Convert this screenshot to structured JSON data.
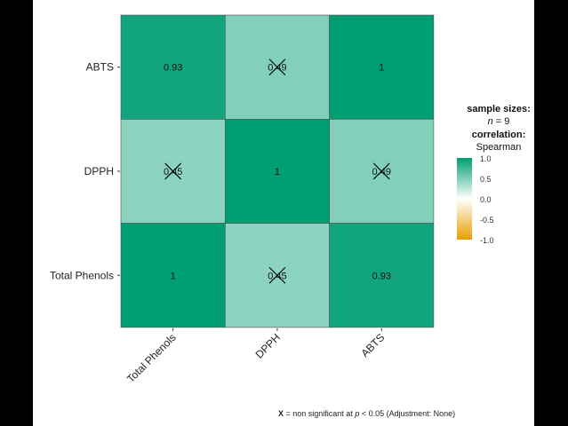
{
  "chart_data": {
    "type": "heatmap",
    "x_categories": [
      "Total Phenols",
      "DPPH",
      "ABTS"
    ],
    "y_categories": [
      "Total Phenols",
      "DPPH",
      "ABTS"
    ],
    "cells": [
      {
        "x": "Total Phenols",
        "y": "ABTS",
        "value": 0.93,
        "label": "0.93",
        "significant": true
      },
      {
        "x": "DPPH",
        "y": "ABTS",
        "value": 0.49,
        "label": "0.49",
        "significant": false
      },
      {
        "x": "ABTS",
        "y": "ABTS",
        "value": 1,
        "label": "1",
        "significant": true
      },
      {
        "x": "Total Phenols",
        "y": "DPPH",
        "value": 0.45,
        "label": "0.45",
        "significant": false
      },
      {
        "x": "DPPH",
        "y": "DPPH",
        "value": 1,
        "label": "1",
        "significant": true
      },
      {
        "x": "ABTS",
        "y": "DPPH",
        "value": 0.49,
        "label": "0.49",
        "significant": false
      },
      {
        "x": "Total Phenols",
        "y": "Total Phenols",
        "value": 1,
        "label": "1",
        "significant": true
      },
      {
        "x": "DPPH",
        "y": "Total Phenols",
        "value": 0.45,
        "label": "0.45",
        "significant": false
      },
      {
        "x": "ABTS",
        "y": "Total Phenols",
        "value": 0.93,
        "label": "0.93",
        "significant": true
      }
    ],
    "color_scale": {
      "low": "#E69F00",
      "mid": "#FFFFFF",
      "high": "#009E73",
      "range": [
        -1,
        1
      ]
    },
    "nonsignificant_marker": "X"
  },
  "legend": {
    "line1": "sample sizes:",
    "line2_var": "n",
    "line2_rest": " = 9",
    "line3": "correlation:",
    "line4": "Spearman",
    "ticks": [
      "1.0",
      "0.5",
      "0.0",
      "-0.5",
      "-1.0"
    ]
  },
  "footnote": {
    "marker": "X",
    "text_a": " = non significant at ",
    "var": "p",
    "text_b": " < 0.05 (Adjustment: None)"
  }
}
